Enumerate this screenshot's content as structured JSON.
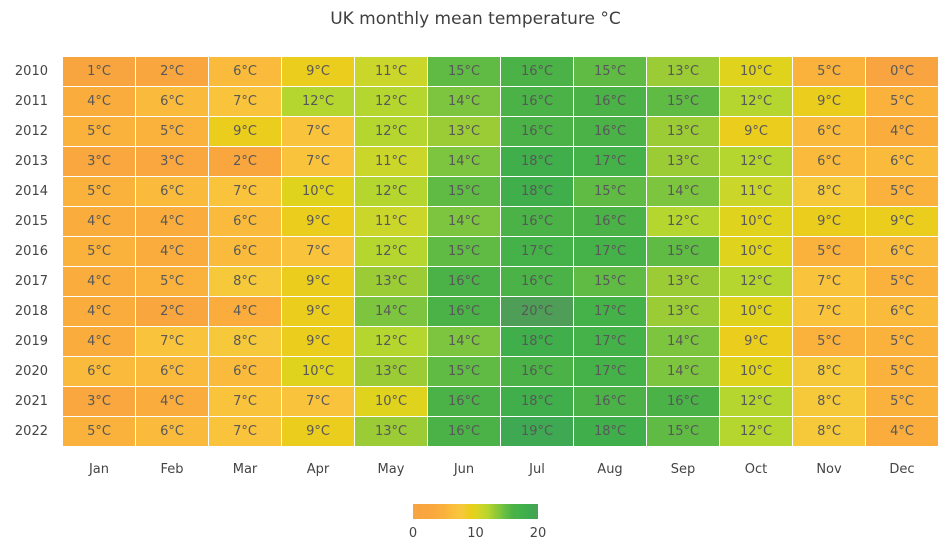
{
  "title": "UK monthly mean temperature °C",
  "chart_data": {
    "type": "heatmap",
    "title": "UK monthly mean temperature °C",
    "x_categories": [
      "Jan",
      "Feb",
      "Mar",
      "Apr",
      "May",
      "Jun",
      "Jul",
      "Aug",
      "Sep",
      "Oct",
      "Nov",
      "Dec"
    ],
    "y_categories": [
      "2010",
      "2011",
      "2012",
      "2013",
      "2014",
      "2015",
      "2016",
      "2017",
      "2018",
      "2019",
      "2020",
      "2021",
      "2022"
    ],
    "values": [
      [
        1,
        2,
        6,
        9,
        11,
        15,
        16,
        15,
        13,
        10,
        5,
        0
      ],
      [
        4,
        6,
        7,
        12,
        12,
        14,
        16,
        16,
        15,
        12,
        9,
        5
      ],
      [
        5,
        5,
        9,
        7,
        12,
        13,
        16,
        16,
        13,
        9,
        6,
        4
      ],
      [
        3,
        3,
        2,
        7,
        11,
        14,
        18,
        17,
        13,
        12,
        6,
        6
      ],
      [
        5,
        6,
        7,
        10,
        12,
        15,
        18,
        15,
        14,
        11,
        8,
        5
      ],
      [
        4,
        4,
        6,
        9,
        11,
        14,
        16,
        16,
        12,
        10,
        9,
        9
      ],
      [
        5,
        4,
        6,
        7,
        12,
        15,
        17,
        17,
        15,
        10,
        5,
        6
      ],
      [
        4,
        5,
        8,
        9,
        13,
        16,
        16,
        15,
        13,
        12,
        7,
        5
      ],
      [
        4,
        2,
        4,
        9,
        14,
        16,
        20,
        17,
        13,
        10,
        7,
        6
      ],
      [
        4,
        7,
        8,
        9,
        12,
        14,
        18,
        17,
        14,
        9,
        5,
        5
      ],
      [
        6,
        6,
        6,
        10,
        13,
        15,
        16,
        17,
        14,
        10,
        8,
        5
      ],
      [
        3,
        4,
        7,
        7,
        10,
        16,
        18,
        16,
        16,
        12,
        8,
        5
      ],
      [
        5,
        6,
        7,
        9,
        13,
        16,
        19,
        18,
        15,
        12,
        8,
        4
      ]
    ],
    "cell_label_suffix": "°C",
    "value_range": [
      0,
      20
    ],
    "colorbar": {
      "ticks": [
        "0",
        "10",
        "20"
      ],
      "orientation": "horizontal"
    },
    "colorscale": [
      [
        0,
        "#F8A441"
      ],
      [
        3,
        "#F9A73E"
      ],
      [
        5,
        "#FAB23C"
      ],
      [
        7,
        "#FAC33C"
      ],
      [
        8,
        "#F5C93A"
      ],
      [
        9,
        "#EBCD1E"
      ],
      [
        10,
        "#E0D31E"
      ],
      [
        11,
        "#CBD62B"
      ],
      [
        12,
        "#B5D62E"
      ],
      [
        13,
        "#9BCB35"
      ],
      [
        14,
        "#7DC53F"
      ],
      [
        15,
        "#60BB45"
      ],
      [
        16,
        "#4AB246"
      ],
      [
        17,
        "#44B249"
      ],
      [
        18,
        "#3FAE4B"
      ],
      [
        19,
        "#3EA952"
      ],
      [
        20,
        "#4F9E58"
      ]
    ],
    "text_colors": {
      "title": "#3f3f3f",
      "axis_ticks": "#444444",
      "cell_labels": "#585858"
    }
  }
}
